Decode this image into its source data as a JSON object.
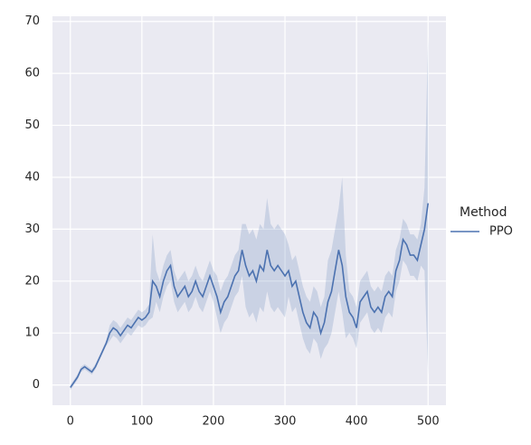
{
  "chart_data": {
    "type": "line",
    "x": [
      0,
      5,
      10,
      15,
      20,
      25,
      30,
      35,
      40,
      45,
      50,
      55,
      60,
      65,
      70,
      75,
      80,
      85,
      90,
      95,
      100,
      105,
      110,
      115,
      120,
      125,
      130,
      135,
      140,
      145,
      150,
      155,
      160,
      165,
      170,
      175,
      180,
      185,
      190,
      195,
      200,
      205,
      210,
      215,
      220,
      225,
      230,
      235,
      240,
      245,
      250,
      255,
      260,
      265,
      270,
      275,
      280,
      285,
      290,
      295,
      300,
      305,
      310,
      315,
      320,
      325,
      330,
      335,
      340,
      345,
      350,
      355,
      360,
      365,
      370,
      375,
      380,
      385,
      390,
      395,
      400,
      405,
      410,
      415,
      420,
      425,
      430,
      435,
      440,
      445,
      450,
      455,
      460,
      465,
      470,
      475,
      480,
      485,
      490,
      495,
      500
    ],
    "series": [
      {
        "name": "PPO",
        "color": "#4c72b0",
        "values": [
          -0.5,
          0.5,
          1.5,
          3,
          3.5,
          3,
          2.5,
          3.5,
          5,
          6.5,
          8,
          10,
          11,
          10.5,
          9.5,
          10.5,
          11.5,
          11,
          12,
          13,
          12.5,
          13,
          14,
          20,
          19,
          17,
          20,
          22,
          23,
          19,
          17,
          18,
          19,
          17,
          18,
          20,
          18,
          17,
          19,
          21,
          19,
          17,
          14,
          16,
          17,
          19,
          21,
          22,
          26,
          23,
          21,
          22,
          20,
          23,
          22,
          26,
          23,
          22,
          23,
          22,
          21,
          22,
          19,
          20,
          17,
          14,
          12,
          11,
          14,
          13,
          10,
          12,
          16,
          18,
          22,
          26,
          23,
          17,
          14,
          13,
          11,
          16,
          17,
          18,
          15,
          14,
          15,
          14,
          17,
          18,
          17,
          22,
          24,
          28,
          27,
          25,
          25,
          24,
          27,
          30,
          35
        ],
        "lower": [
          -1,
          0,
          1,
          2.5,
          3,
          2.5,
          2,
          3,
          4.5,
          6,
          7.5,
          8.5,
          9.5,
          9,
          8,
          9,
          10,
          9.5,
          10.5,
          11.5,
          11,
          11.5,
          12.5,
          13,
          16,
          14,
          17,
          19,
          20,
          16,
          14,
          15,
          16,
          14,
          15,
          17,
          15,
          14,
          16,
          18,
          16,
          13,
          10,
          12,
          13,
          15,
          17,
          18,
          21,
          15,
          13,
          14,
          12,
          15,
          14,
          18,
          15,
          14,
          15,
          14,
          13,
          17,
          14,
          15,
          12,
          9,
          7,
          6,
          9,
          8,
          5,
          7,
          8,
          10,
          14,
          18,
          14,
          9,
          10,
          9,
          7,
          12,
          13,
          14,
          11,
          10,
          11,
          10,
          13,
          14,
          13,
          18,
          20,
          24,
          23,
          21,
          21,
          20,
          23,
          22,
          2
        ],
        "upper": [
          0,
          1,
          2,
          3.5,
          4,
          3.5,
          3,
          4,
          5.5,
          7,
          8.5,
          11.5,
          12.5,
          12,
          11,
          12,
          13,
          12.5,
          13.5,
          14.5,
          14,
          14.5,
          15.5,
          29,
          22,
          20,
          23,
          25,
          26,
          22,
          20,
          21,
          22,
          20,
          21,
          23,
          21,
          20,
          22,
          24,
          22,
          21,
          18,
          20,
          21,
          23,
          25,
          26,
          31,
          31,
          29,
          30,
          28,
          31,
          30,
          36,
          31,
          30,
          31,
          30,
          29,
          27,
          24,
          25,
          22,
          19,
          17,
          16,
          19,
          18,
          15,
          17,
          24,
          26,
          30,
          34,
          40,
          25,
          18,
          17,
          15,
          20,
          21,
          22,
          19,
          18,
          19,
          18,
          21,
          22,
          21,
          26,
          28,
          32,
          31,
          29,
          29,
          28,
          31,
          38,
          67
        ]
      }
    ],
    "xlim": [
      -25,
      525
    ],
    "ylim": [
      -3.9,
      71
    ],
    "xticks": [
      0,
      100,
      200,
      300,
      400,
      500
    ],
    "yticks": [
      0,
      10,
      20,
      30,
      40,
      50,
      60,
      70
    ],
    "grid": true,
    "legend_title": "Method",
    "legend": "right"
  }
}
